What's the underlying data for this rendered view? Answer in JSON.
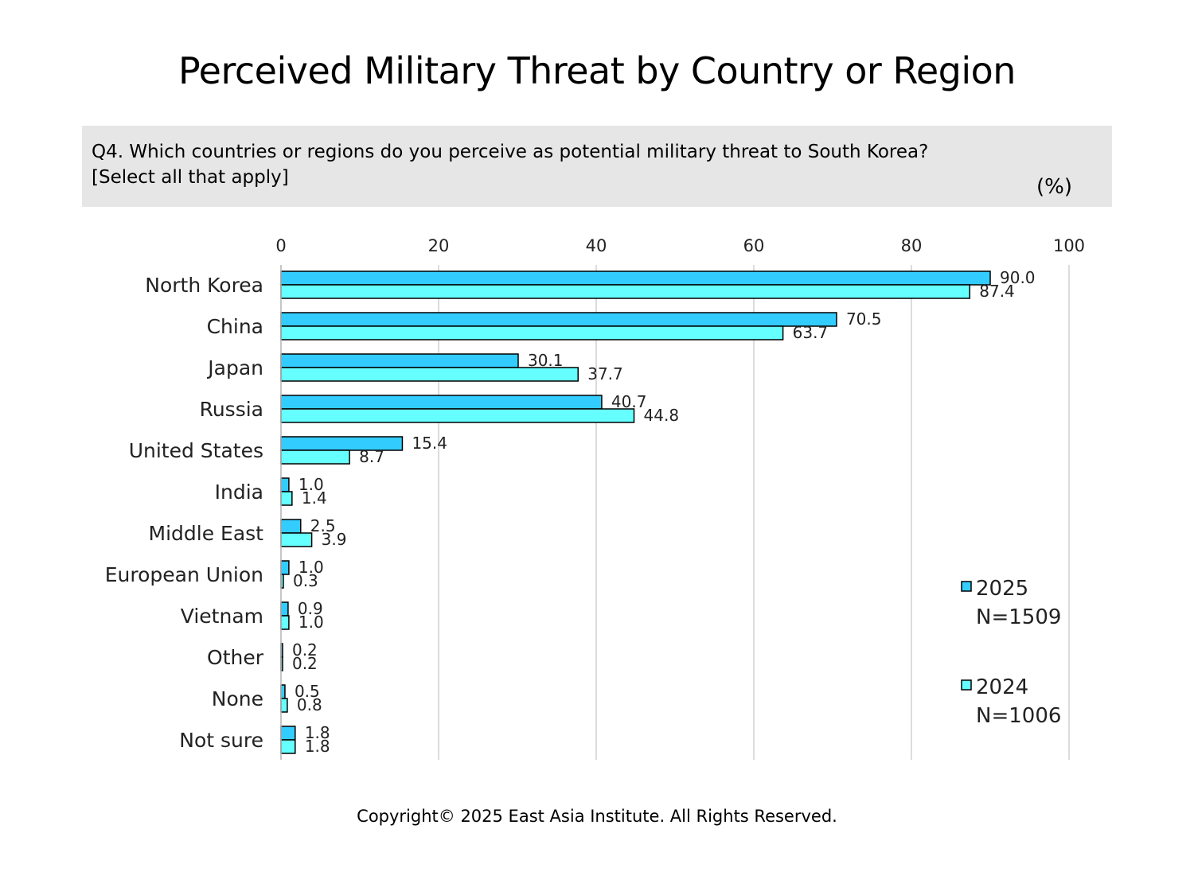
{
  "title": "Perceived Military Threat by Country or Region",
  "question": {
    "line1": "Q4. Which countries or regions do you perceive as potential military threat to South Korea?",
    "line2": "[Select all that apply]",
    "unit": "(%)"
  },
  "copyright": "Copyright© 2025 East Asia Institute. All Rights Reserved.",
  "chart_data": {
    "type": "bar",
    "orientation": "horizontal",
    "categories": [
      "North Korea",
      "China",
      "Japan",
      "Russia",
      "United States",
      "India",
      "Middle East",
      "European Union",
      "Vietnam",
      "Other",
      "None",
      "Not sure"
    ],
    "series": [
      {
        "name": "2025",
        "sample": "N=1509",
        "color": "#33ccff",
        "values": [
          90.0,
          70.5,
          30.1,
          40.7,
          15.4,
          1.0,
          2.5,
          1.0,
          0.9,
          0.2,
          0.5,
          1.8
        ],
        "labels": [
          "90.0",
          "70.5",
          "30.1",
          "40.7",
          "15.4",
          "1.0",
          "2.5",
          "1.0",
          "0.9",
          "0.2",
          "0.5",
          "1.8"
        ]
      },
      {
        "name": "2024",
        "sample": "N=1006",
        "color": "#66ffff",
        "values": [
          87.4,
          63.7,
          37.7,
          44.8,
          8.7,
          1.4,
          3.9,
          0.3,
          1.0,
          0.2,
          0.8,
          1.8
        ],
        "labels": [
          "87.4",
          "63.7",
          "37.7",
          "44.8",
          "8.7",
          "1.4",
          "3.9",
          "0.3",
          "1.0",
          "0.2",
          "0.8",
          "1.8"
        ]
      }
    ],
    "xlim": [
      0,
      100
    ],
    "xticks": [
      "0",
      "20",
      "40",
      "60",
      "80",
      "100"
    ],
    "x_axis_position": "top",
    "grid": true,
    "legend_position": "bottom-right"
  }
}
